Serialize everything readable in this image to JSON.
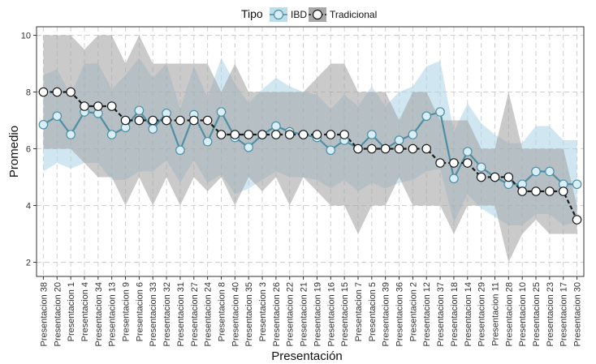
{
  "chart_data": {
    "type": "line",
    "xlabel": "Presentación",
    "ylabel": "Promedio",
    "ylim": [
      1.5,
      10.3
    ],
    "yticks": [
      2,
      4,
      6,
      8,
      10
    ],
    "grid": true,
    "legend": {
      "title": "Tipo",
      "position": "top",
      "entries": [
        "IBD",
        "Tradicional"
      ]
    },
    "categories": [
      "Presentacion 38",
      "Presentacion 20",
      "Presentacion 1",
      "Presentacion 4",
      "Presentacion 34",
      "Presentacion 13",
      "Presentacion 9",
      "Presentacion 6",
      "Presentacion 33",
      "Presentacion 32",
      "Presentacion 31",
      "Presentacion 27",
      "Presentacion 24",
      "Presentacion 8",
      "Presentacion 40",
      "Presentacion 35",
      "Presentacion 3",
      "Presentacion 26",
      "Presentacion 22",
      "Presentacion 21",
      "Presentacion 19",
      "Presentacion 16",
      "Presentacion 15",
      "Presentacion 7",
      "Presentacion 5",
      "Presentacion 39",
      "Presentacion 36",
      "Presentacion 2",
      "Presentacion 12",
      "Presentacion 37",
      "Presentacion 18",
      "Presentacion 14",
      "Presentacion 29",
      "Presentacion 11",
      "Presentacion 28",
      "Presentacion 10",
      "Presentacion 25",
      "Presentacion 23",
      "Presentacion 17",
      "Presentacion 30"
    ],
    "series": [
      {
        "name": "IBD",
        "color": "#4e8fa4",
        "band_color": "#a9d3e6",
        "line_style": "solid",
        "values": [
          6.85,
          7.15,
          6.5,
          7.3,
          7.25,
          6.5,
          6.75,
          7.35,
          6.7,
          7.25,
          5.95,
          7.2,
          6.25,
          7.3,
          6.4,
          6.05,
          6.5,
          6.8,
          6.6,
          6.5,
          6.4,
          5.95,
          6.3,
          6.0,
          6.5,
          6.0,
          6.3,
          6.5,
          7.15,
          7.3,
          4.95,
          5.9,
          5.35,
          5.0,
          4.75,
          4.75,
          5.2,
          5.2,
          4.75,
          4.75
        ],
        "lower": [
          5.2,
          5.5,
          5.3,
          5.5,
          5.5,
          4.9,
          4.9,
          5.2,
          5.2,
          5.6,
          4.8,
          5.6,
          4.8,
          5.1,
          4.4,
          4.6,
          4.9,
          5.2,
          5.0,
          5.0,
          4.9,
          4.6,
          4.9,
          4.5,
          4.8,
          4.6,
          4.8,
          4.9,
          5.2,
          5.3,
          3.4,
          4.4,
          3.9,
          3.6,
          3.3,
          3.3,
          3.7,
          3.7,
          3.3,
          3.4
        ],
        "upper": [
          8.6,
          8.8,
          7.9,
          9.0,
          9.0,
          8.1,
          8.6,
          9.2,
          8.5,
          9.0,
          7.4,
          8.9,
          7.8,
          9.2,
          8.3,
          7.6,
          8.1,
          8.5,
          8.2,
          8.0,
          7.9,
          7.4,
          7.9,
          7.5,
          8.2,
          7.5,
          8.0,
          8.2,
          8.9,
          9.1,
          6.6,
          7.6,
          6.9,
          6.5,
          6.2,
          6.2,
          6.8,
          6.8,
          6.3,
          6.3
        ]
      },
      {
        "name": "Tradicional",
        "color": "#1a1a1a",
        "band_color": "#9e9e9e",
        "line_style": "dashed",
        "values": [
          8.0,
          8.0,
          8.0,
          7.5,
          7.5,
          7.5,
          7.0,
          7.0,
          7.0,
          7.0,
          7.0,
          7.0,
          7.0,
          6.5,
          6.5,
          6.5,
          6.5,
          6.5,
          6.5,
          6.5,
          6.5,
          6.5,
          6.5,
          6.0,
          6.0,
          6.0,
          6.0,
          6.0,
          6.0,
          5.5,
          5.5,
          5.5,
          5.0,
          5.0,
          5.0,
          4.5,
          4.5,
          4.5,
          4.5,
          3.5
        ],
        "lower": [
          6.0,
          6.0,
          6.0,
          5.5,
          5.0,
          5.0,
          4.0,
          5.0,
          4.0,
          5.0,
          4.0,
          5.0,
          4.5,
          5.0,
          4.0,
          5.0,
          4.5,
          5.0,
          4.0,
          5.0,
          4.5,
          4.0,
          4.0,
          3.0,
          4.0,
          4.0,
          5.0,
          4.0,
          4.0,
          4.0,
          3.0,
          4.0,
          4.0,
          4.0,
          2.0,
          3.0,
          3.5,
          3.0,
          3.0,
          3.0
        ],
        "upper": [
          10.0,
          10.0,
          10.0,
          9.5,
          10.0,
          10.0,
          9.0,
          10.0,
          9.0,
          9.0,
          9.0,
          9.0,
          9.0,
          8.0,
          9.0,
          8.0,
          8.0,
          8.0,
          8.0,
          8.0,
          8.5,
          9.0,
          9.0,
          8.0,
          8.0,
          8.0,
          7.0,
          8.0,
          8.0,
          7.0,
          7.0,
          7.0,
          6.0,
          6.0,
          8.0,
          6.0,
          6.0,
          6.0,
          6.0,
          4.0
        ]
      }
    ]
  }
}
